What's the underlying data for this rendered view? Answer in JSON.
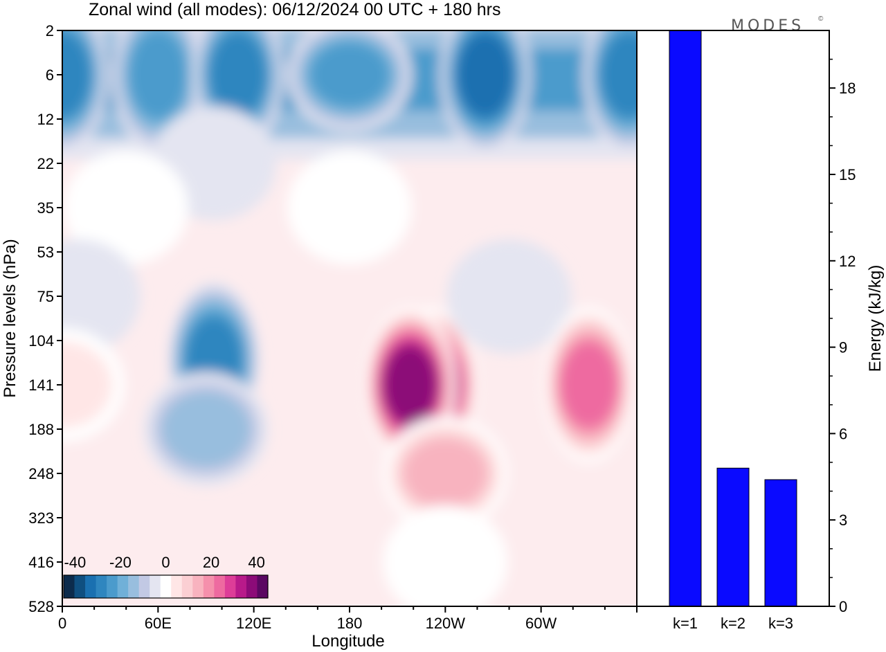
{
  "title": "Zonal wind (all modes):  06/12/2024  00 UTC  + 180 hrs",
  "brand": "MODES",
  "brand_mark": "©",
  "chart_data": [
    {
      "type": "heatmap",
      "title": "Zonal wind (all modes):  06/12/2024  00 UTC  + 180 hrs",
      "xlabel": "Longitude",
      "ylabel": "Pressure levels (hPa)",
      "x_ticks": [
        "0",
        "60E",
        "120E",
        "180",
        "120W",
        "60W"
      ],
      "y_ticks": [
        "2",
        "6",
        "12",
        "22",
        "35",
        "53",
        "75",
        "104",
        "141",
        "188",
        "248",
        "323",
        "416",
        "528"
      ],
      "colorbar": {
        "labels": [
          "-40",
          "-20",
          "0",
          "20",
          "40"
        ],
        "range": [
          -45,
          45
        ],
        "step": 5,
        "colors": [
          "#0c2b4c",
          "#0f4f80",
          "#1a70b0",
          "#2f86bf",
          "#4b9bcc",
          "#70b0d8",
          "#98bede",
          "#c2c9e4",
          "#e4e5f1",
          "#ffffff",
          "#ffe6e6",
          "#fbcfd3",
          "#f8b3bf",
          "#f590ac",
          "#ee6aa0",
          "#dd3d98",
          "#b81a8a",
          "#8c0b78",
          "#5a0862"
        ]
      },
      "series": [
        {
          "name": "",
          "note_features": [
            {
              "lon": 0,
              "level": "6",
              "u": -28
            },
            {
              "lon": 60,
              "level": "6",
              "u": -26
            },
            {
              "lon": 110,
              "level": "6",
              "u": -30
            },
            {
              "lon": 180,
              "level": "6",
              "u": -24
            },
            {
              "lon": 265,
              "level": "6",
              "u": -35
            },
            {
              "lon": 355,
              "level": "6",
              "u": -32
            },
            {
              "lon": 95,
              "level": "22",
              "u": -2
            },
            {
              "lon": 40,
              "level": "35",
              "u": 4
            },
            {
              "lon": 180,
              "level": "35",
              "u": 6
            },
            {
              "lon": 10,
              "level": "75",
              "u": -6
            },
            {
              "lon": 95,
              "level": "120",
              "u": -32
            },
            {
              "lon": 90,
              "level": "188",
              "u": -14
            },
            {
              "lon": 0,
              "level": "141",
              "u": 8
            },
            {
              "lon": 232,
              "level": "141",
              "u": 40
            },
            {
              "lon": 218,
              "level": "141",
              "u": 45
            },
            {
              "lon": 280,
              "level": "75",
              "u": -4
            },
            {
              "lon": 330,
              "level": "141",
              "u": 28
            },
            {
              "lon": 240,
              "level": "248",
              "u": 18
            },
            {
              "lon": 240,
              "level": "416",
              "u": 4
            }
          ]
        }
      ]
    },
    {
      "type": "bar",
      "ylabel": "Energy (kJ/kg)",
      "categories": [
        "k=1",
        "k=2",
        "k=3"
      ],
      "values": [
        20.5,
        4.8,
        4.4
      ],
      "ylim": [
        0,
        20
      ],
      "y_ticks": [
        "0",
        "3",
        "6",
        "9",
        "12",
        "15",
        "18"
      ],
      "bar_color": "#0a0aff"
    }
  ]
}
